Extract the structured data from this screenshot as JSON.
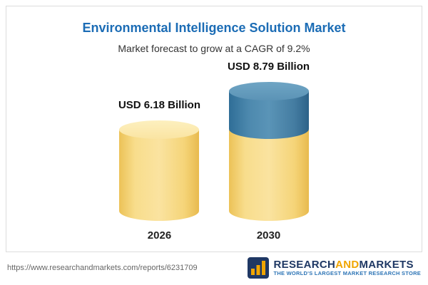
{
  "header": {
    "title": "Environmental Intelligence Solution Market",
    "subtitle": "Market forecast to grow at a CAGR of 9.2%"
  },
  "chart_data": {
    "type": "bar",
    "title": "Environmental Intelligence Solution Market",
    "subtitle": "Market forecast to grow at a CAGR of 9.2%",
    "cagr_percent": 9.2,
    "unit": "USD Billion",
    "categories": [
      "2026",
      "2030"
    ],
    "values": [
      6.18,
      8.79
    ],
    "value_labels": [
      "USD 6.18 Billion",
      "USD 8.79 Billion"
    ],
    "series_note": "2030 bar shows base value in yellow plus growth over 2026 in blue",
    "colors": {
      "base_bar": "#f5d478",
      "growth_segment": "#447ca1",
      "title_text": "#1b6cb5"
    },
    "legend_position": "none",
    "grid": false
  },
  "footer": {
    "url": "https://www.researchandmarkets.com/reports/6231709",
    "logo": {
      "part1": "RESEARCH",
      "part2": "AND",
      "part3": "MARKETS",
      "tagline": "THE WORLD'S LARGEST MARKET RESEARCH STORE"
    }
  }
}
